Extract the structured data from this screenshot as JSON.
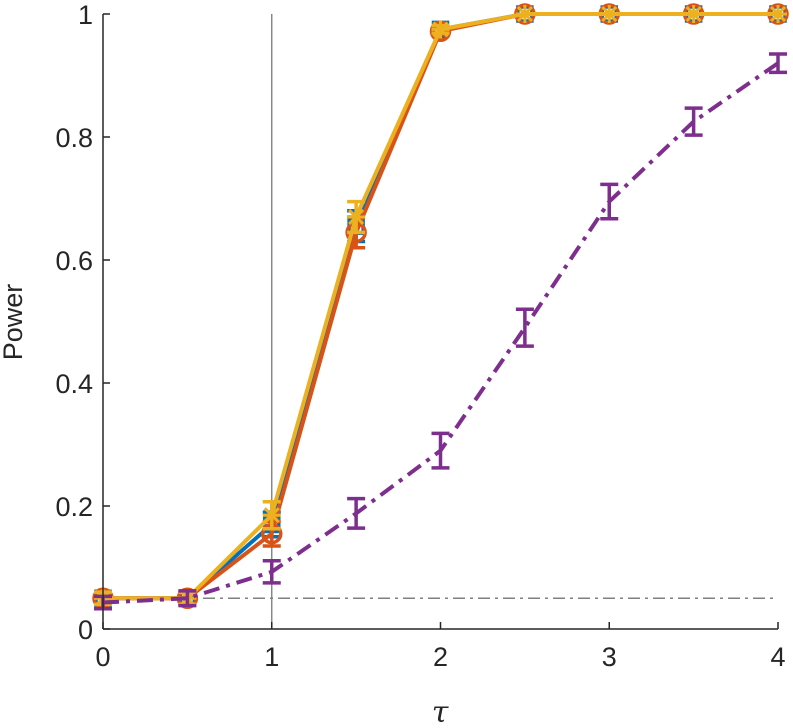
{
  "chart_data": {
    "type": "line",
    "xlabel": "τ",
    "ylabel": "Power",
    "xlim": [
      0,
      4
    ],
    "ylim": [
      0,
      1
    ],
    "xticks": [
      0,
      1,
      2,
      3,
      4
    ],
    "yticks": [
      0,
      0.2,
      0.4,
      0.6,
      0.8,
      1
    ],
    "xtick_labels": [
      "0",
      "1",
      "2",
      "3",
      "4"
    ],
    "ytick_labels": [
      "0",
      "0.2",
      "0.4",
      "0.6",
      "0.8",
      "1"
    ],
    "grid": false,
    "reference_lines": [
      {
        "orientation": "vertical",
        "value": 1,
        "color": "#808080",
        "style": "solid"
      },
      {
        "orientation": "horizontal",
        "value": 0.05,
        "color": "#808080",
        "style": "dash-dot"
      }
    ],
    "x": [
      0,
      0.5,
      1,
      1.5,
      2,
      2.5,
      3,
      3.5,
      4
    ],
    "series": [
      {
        "color": "#0072BD",
        "line_style": "solid",
        "marker": "square",
        "values": [
          0.05,
          0.05,
          0.17,
          0.655,
          0.975,
          1.0,
          1.0,
          1.0,
          1.0
        ],
        "errors": [
          0.01,
          0.01,
          0.02,
          0.025,
          0.006,
          0.0,
          0.0,
          0.0,
          0.0
        ]
      },
      {
        "color": "#D95319",
        "line_style": "solid",
        "marker": "circle",
        "values": [
          0.05,
          0.05,
          0.155,
          0.645,
          0.972,
          1.0,
          1.0,
          1.0,
          1.0
        ],
        "errors": [
          0.01,
          0.01,
          0.02,
          0.025,
          0.006,
          0.0,
          0.0,
          0.0,
          0.0
        ]
      },
      {
        "color": "#EDB120",
        "line_style": "solid",
        "marker": "star",
        "values": [
          0.05,
          0.05,
          0.185,
          0.67,
          0.975,
          1.0,
          1.0,
          1.0,
          1.0
        ],
        "errors": [
          0.01,
          0.01,
          0.022,
          0.025,
          0.006,
          0.0,
          0.0,
          0.0,
          0.0
        ]
      },
      {
        "color": "#7E2F8E",
        "line_style": "dash-dot",
        "marker": "none",
        "values": [
          0.043,
          0.05,
          0.093,
          0.188,
          0.29,
          0.49,
          0.695,
          0.825,
          0.92
        ],
        "errors": [
          0.01,
          0.012,
          0.018,
          0.024,
          0.028,
          0.03,
          0.028,
          0.022,
          0.015
        ]
      }
    ]
  }
}
